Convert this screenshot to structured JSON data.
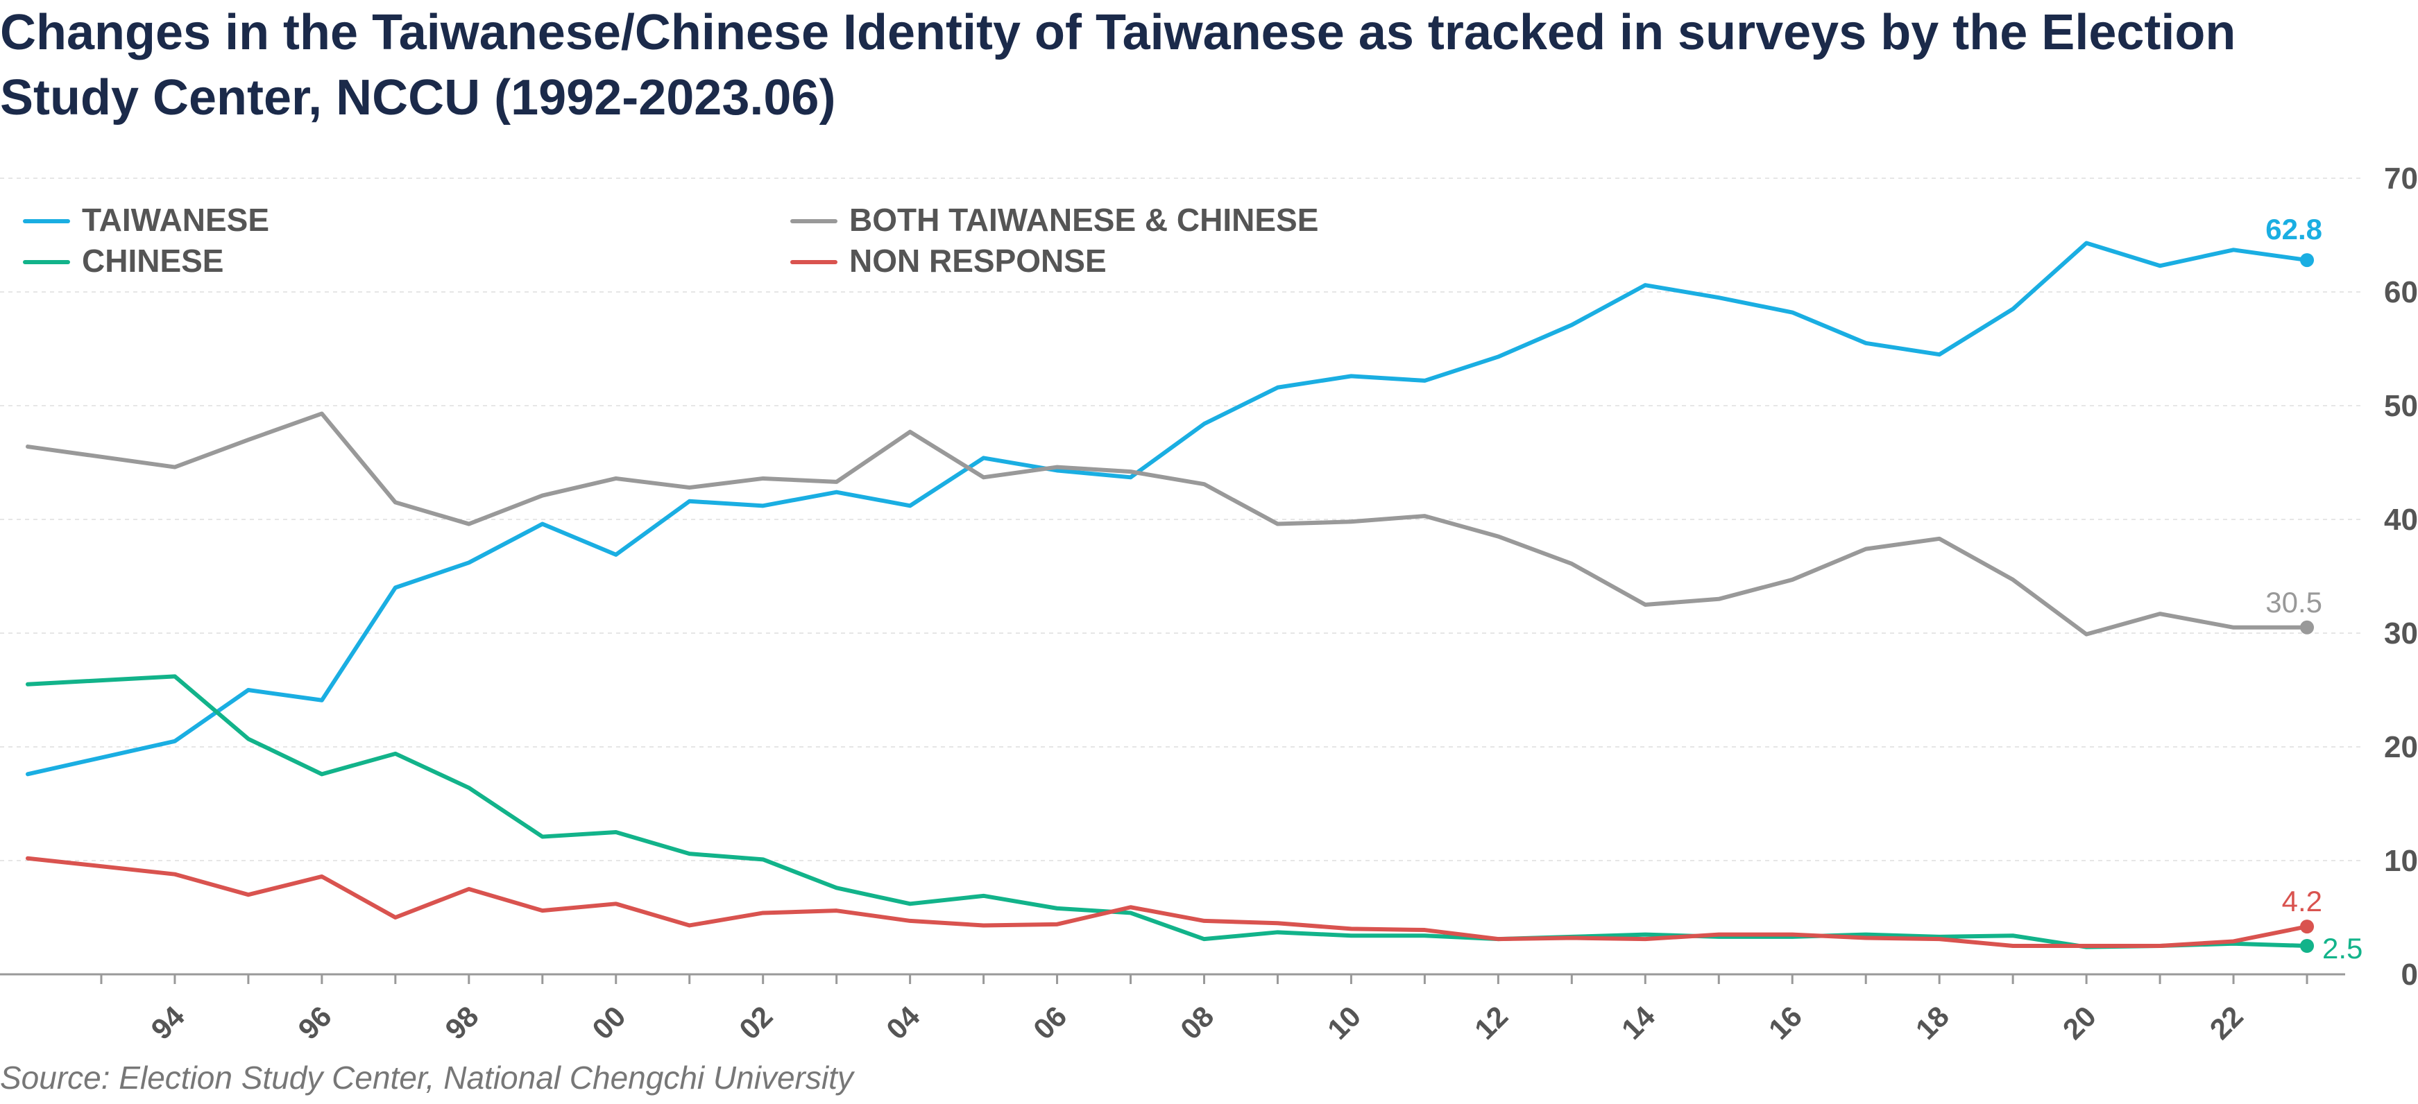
{
  "chart_data": {
    "type": "line",
    "title": "Changes in the Taiwanese/Chinese Identity of Taiwanese as tracked in surveys by the Election Study Center, NCCU (1992-2023.06)",
    "source": "Source: Election Study Center, National Chengchi University",
    "x": [
      1992,
      1994,
      1995,
      1996,
      1997,
      1998,
      1999,
      2000,
      2001,
      2002,
      2003,
      2004,
      2005,
      2006,
      2007,
      2008,
      2009,
      2010,
      2011,
      2012,
      2013,
      2014,
      2015,
      2016,
      2017,
      2018,
      2019,
      2020,
      2021,
      2022,
      2023
    ],
    "xlim": [
      1992,
      2023.5
    ],
    "x_tick_values": [
      1994,
      1996,
      1998,
      2000,
      2002,
      2004,
      2006,
      2008,
      2010,
      2012,
      2014,
      2016,
      2018,
      2020,
      2022
    ],
    "x_tick_labels": [
      "94",
      "96",
      "98",
      "00",
      "02",
      "04",
      "06",
      "08",
      "10",
      "12",
      "14",
      "16",
      "18",
      "20",
      "22"
    ],
    "ylim": [
      0,
      70
    ],
    "y_ticks": [
      0,
      10,
      20,
      30,
      40,
      50,
      60,
      70
    ],
    "y_tick_labels": [
      "0",
      "10",
      "20",
      "30",
      "40",
      "50",
      "60",
      "70"
    ],
    "y_axis_position": "right",
    "grid": true,
    "legend_position": "top-left",
    "series": [
      {
        "name": "TAIWANESE",
        "color": "#1aaee2",
        "values": [
          17.6,
          20.5,
          25.0,
          24.1,
          34.0,
          36.2,
          39.6,
          36.9,
          41.6,
          41.2,
          42.4,
          41.2,
          45.4,
          44.3,
          43.7,
          48.4,
          51.6,
          52.6,
          52.2,
          54.3,
          57.1,
          60.6,
          59.5,
          58.2,
          55.5,
          54.5,
          58.5,
          64.3,
          62.3,
          63.7,
          62.8
        ],
        "end_label": "62.8"
      },
      {
        "name": "BOTH TAIWANESE & CHINESE",
        "color": "#999999",
        "values": [
          46.4,
          44.6,
          47.0,
          49.3,
          41.5,
          39.6,
          42.1,
          43.6,
          42.8,
          43.6,
          43.3,
          47.7,
          43.7,
          44.6,
          44.2,
          43.1,
          39.6,
          39.8,
          40.3,
          38.5,
          36.1,
          32.5,
          33.0,
          34.7,
          37.4,
          38.3,
          34.7,
          29.9,
          31.7,
          30.5,
          30.5
        ],
        "end_label": "30.5"
      },
      {
        "name": "CHINESE",
        "color": "#12b38a",
        "values": [
          25.5,
          26.2,
          20.7,
          17.6,
          19.4,
          16.4,
          12.1,
          12.5,
          10.6,
          10.1,
          7.6,
          6.2,
          6.9,
          5.8,
          5.4,
          3.1,
          3.7,
          3.4,
          3.4,
          3.1,
          3.3,
          3.5,
          3.3,
          3.3,
          3.5,
          3.3,
          3.4,
          2.4,
          2.5,
          2.7,
          2.5
        ],
        "end_label": "2.5"
      },
      {
        "name": "NON RESPONSE",
        "color": "#d9534f",
        "values": [
          10.2,
          8.8,
          7.0,
          8.6,
          5.0,
          7.5,
          5.6,
          6.2,
          4.3,
          5.4,
          5.6,
          4.7,
          4.3,
          4.4,
          5.9,
          4.7,
          4.5,
          4.0,
          3.9,
          3.1,
          3.2,
          3.1,
          3.5,
          3.5,
          3.2,
          3.1,
          2.5,
          2.5,
          2.5,
          2.9,
          4.2
        ],
        "end_label": "4.2"
      }
    ]
  }
}
